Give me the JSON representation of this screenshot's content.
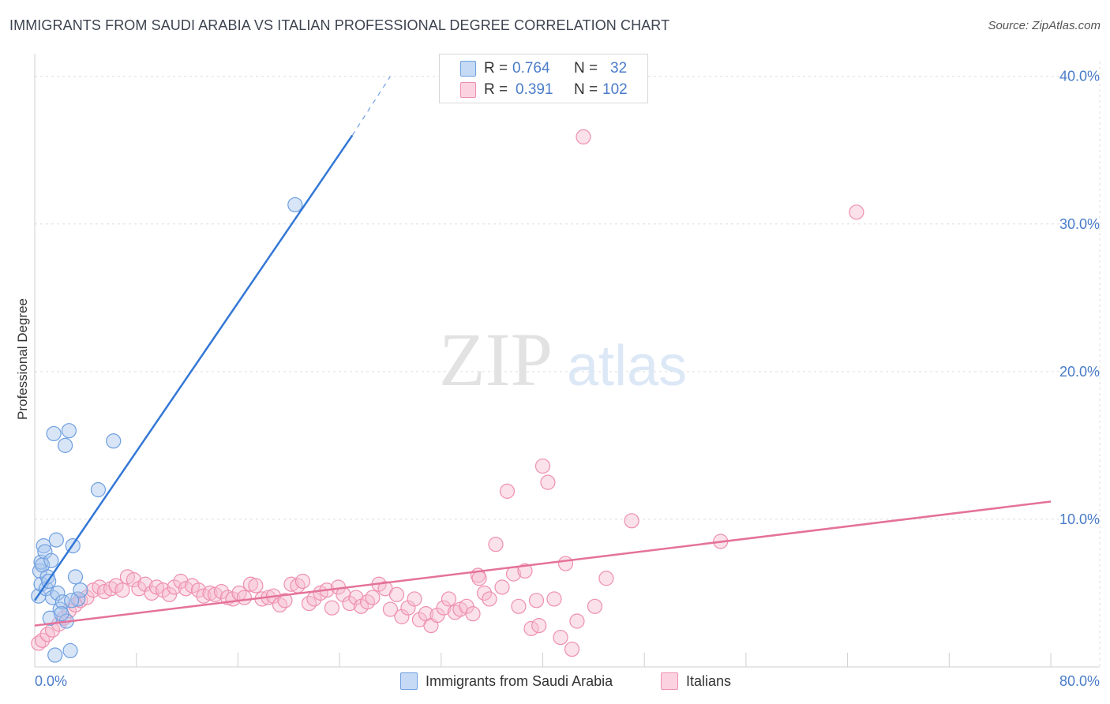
{
  "title": "IMMIGRANTS FROM SAUDI ARABIA VS ITALIAN PROFESSIONAL DEGREE CORRELATION CHART",
  "source": "Source: ZipAtlas.com",
  "watermark": {
    "zip": "ZIP",
    "atlas": "atlas"
  },
  "colors": {
    "blue_fill": "#a9c6ee",
    "blue_stroke": "#6e9fe0",
    "blue_line": "#3377d6",
    "pink_fill": "#f7bccf",
    "pink_stroke": "#ee8fb0",
    "pink_line": "#e4729a",
    "axis_text": "#4a7cc9",
    "grid": "#dddddd"
  },
  "stats": {
    "r_label": "R =",
    "n_label": "N =",
    "rows": [
      {
        "series": "Immigrants from Saudi Arabia",
        "r": "0.764",
        "n": "32"
      },
      {
        "series": "Italians",
        "r": "0.391",
        "n": "102"
      }
    ]
  },
  "legend": [
    "Immigrants from Saudi Arabia",
    "Italians"
  ],
  "chart_data": {
    "type": "scatter",
    "title": "IMMIGRANTS FROM SAUDI ARABIA VS ITALIAN PROFESSIONAL DEGREE CORRELATION CHART",
    "xlabel": "",
    "ylabel": "Professional Degree",
    "xlim": [
      0,
      80
    ],
    "ylim": [
      0,
      41
    ],
    "x_tick_labels": [
      "0.0%",
      "80.0%"
    ],
    "y_ticks": [
      10,
      20,
      30,
      40
    ],
    "y_tick_labels": [
      "10.0%",
      "20.0%",
      "30.0%",
      "40.0%"
    ],
    "grid": true,
    "series": [
      {
        "name": "Immigrants from Saudi Arabia",
        "trend": {
          "x0": 0,
          "y0": 4.5,
          "x1": 25,
          "y1": 36,
          "dash_x1": 28,
          "dash_y1": 40
        },
        "points": [
          [
            0.3,
            4.8
          ],
          [
            0.4,
            6.5
          ],
          [
            0.5,
            5.6
          ],
          [
            0.5,
            7.1
          ],
          [
            0.6,
            6.9
          ],
          [
            0.7,
            8.2
          ],
          [
            0.8,
            7.8
          ],
          [
            0.9,
            5.3
          ],
          [
            1.0,
            6.1
          ],
          [
            1.1,
            5.8
          ],
          [
            1.3,
            7.2
          ],
          [
            1.4,
            4.7
          ],
          [
            1.5,
            15.8
          ],
          [
            1.7,
            8.6
          ],
          [
            1.8,
            5.0
          ],
          [
            2.0,
            3.9
          ],
          [
            2.2,
            4.4
          ],
          [
            2.4,
            15.0
          ],
          [
            2.5,
            3.1
          ],
          [
            2.7,
            16.0
          ],
          [
            3.0,
            8.2
          ],
          [
            3.2,
            6.1
          ],
          [
            3.4,
            4.6
          ],
          [
            3.6,
            5.2
          ],
          [
            5.0,
            12.0
          ],
          [
            6.2,
            15.3
          ],
          [
            20.5,
            31.3
          ],
          [
            1.6,
            0.8
          ],
          [
            2.8,
            1.1
          ],
          [
            1.2,
            3.3
          ],
          [
            2.1,
            3.6
          ],
          [
            2.9,
            4.5
          ]
        ]
      },
      {
        "name": "Italians",
        "trend": {
          "x0": 0,
          "y0": 2.8,
          "x1": 80,
          "y1": 11.2
        },
        "points": [
          [
            0.3,
            1.6
          ],
          [
            0.6,
            1.8
          ],
          [
            1.0,
            2.2
          ],
          [
            1.4,
            2.5
          ],
          [
            1.9,
            2.9
          ],
          [
            2.3,
            3.3
          ],
          [
            2.7,
            3.8
          ],
          [
            3.2,
            4.2
          ],
          [
            3.6,
            4.5
          ],
          [
            4.1,
            4.7
          ],
          [
            4.6,
            5.2
          ],
          [
            5.1,
            5.4
          ],
          [
            5.5,
            5.1
          ],
          [
            6.0,
            5.3
          ],
          [
            6.4,
            5.5
          ],
          [
            6.9,
            5.2
          ],
          [
            7.3,
            6.1
          ],
          [
            7.8,
            5.9
          ],
          [
            8.2,
            5.3
          ],
          [
            8.7,
            5.6
          ],
          [
            9.2,
            5.0
          ],
          [
            9.6,
            5.4
          ],
          [
            10.1,
            5.2
          ],
          [
            10.6,
            4.9
          ],
          [
            11.0,
            5.4
          ],
          [
            11.5,
            5.8
          ],
          [
            11.9,
            5.3
          ],
          [
            12.4,
            5.5
          ],
          [
            12.9,
            5.2
          ],
          [
            13.3,
            4.8
          ],
          [
            13.8,
            5.0
          ],
          [
            14.2,
            4.9
          ],
          [
            14.7,
            5.1
          ],
          [
            15.2,
            4.7
          ],
          [
            15.6,
            4.6
          ],
          [
            16.1,
            5.0
          ],
          [
            16.5,
            4.7
          ],
          [
            17.0,
            5.6
          ],
          [
            17.4,
            5.5
          ],
          [
            17.9,
            4.6
          ],
          [
            18.4,
            4.7
          ],
          [
            18.8,
            4.8
          ],
          [
            19.3,
            4.2
          ],
          [
            19.7,
            4.5
          ],
          [
            20.2,
            5.6
          ],
          [
            20.7,
            5.5
          ],
          [
            21.1,
            5.8
          ],
          [
            21.6,
            4.3
          ],
          [
            22.0,
            4.6
          ],
          [
            22.5,
            5.0
          ],
          [
            23.0,
            5.2
          ],
          [
            23.4,
            4.0
          ],
          [
            23.9,
            5.4
          ],
          [
            24.3,
            4.9
          ],
          [
            24.8,
            4.3
          ],
          [
            25.3,
            4.7
          ],
          [
            25.7,
            4.1
          ],
          [
            26.2,
            4.4
          ],
          [
            26.6,
            4.7
          ],
          [
            27.1,
            5.6
          ],
          [
            27.6,
            5.3
          ],
          [
            28.0,
            3.9
          ],
          [
            28.5,
            4.9
          ],
          [
            28.9,
            3.4
          ],
          [
            29.4,
            4.0
          ],
          [
            29.9,
            4.6
          ],
          [
            30.3,
            3.2
          ],
          [
            30.8,
            3.6
          ],
          [
            31.2,
            2.8
          ],
          [
            31.7,
            3.5
          ],
          [
            32.2,
            4.0
          ],
          [
            32.6,
            4.6
          ],
          [
            33.1,
            3.7
          ],
          [
            33.5,
            3.9
          ],
          [
            34.0,
            4.1
          ],
          [
            34.5,
            3.6
          ],
          [
            34.9,
            6.2
          ],
          [
            35.4,
            5.0
          ],
          [
            35.8,
            4.6
          ],
          [
            36.3,
            8.3
          ],
          [
            36.8,
            5.4
          ],
          [
            37.2,
            11.9
          ],
          [
            37.7,
            6.3
          ],
          [
            38.1,
            4.1
          ],
          [
            38.6,
            6.5
          ],
          [
            39.1,
            2.6
          ],
          [
            39.5,
            4.5
          ],
          [
            40.0,
            13.6
          ],
          [
            40.4,
            12.5
          ],
          [
            40.9,
            4.6
          ],
          [
            41.4,
            2.0
          ],
          [
            41.8,
            7.0
          ],
          [
            42.3,
            1.2
          ],
          [
            42.7,
            3.1
          ],
          [
            43.2,
            35.9
          ],
          [
            44.1,
            4.1
          ],
          [
            45.0,
            6.0
          ],
          [
            47.0,
            9.9
          ],
          [
            54.0,
            8.5
          ],
          [
            64.7,
            30.8
          ],
          [
            35.0,
            6.0
          ],
          [
            39.7,
            2.8
          ]
        ]
      }
    ]
  }
}
